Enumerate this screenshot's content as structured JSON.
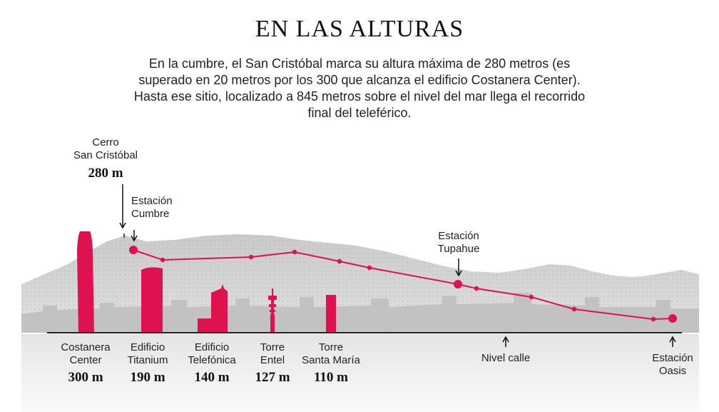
{
  "header": {
    "title": "EN LAS ALTURAS",
    "subtitle": "En la cumbre, el San Cristóbal marca su altura máxima de 280 metros (es superado en 20 metros por los 300 que alcanza el edificio Costanera Center). Hasta ese sitio, localizado a 845 metros sobre el nivel del mar llega el recorrido final del teleférico."
  },
  "colors": {
    "accent": "#e0114f",
    "ground": "#222222",
    "text": "#222222"
  },
  "hill": {
    "label_line1": "Cerro",
    "label_line2": "San Cristóbal",
    "height": "280 m"
  },
  "stations": {
    "cumbre": {
      "line1": "Estación",
      "line2": "Cumbre"
    },
    "tupahue": {
      "line1": "Estación",
      "line2": "Tupahue"
    },
    "oasis": {
      "line1": "Estación",
      "line2": "Oasis"
    }
  },
  "street_level": {
    "label": "Nivel calle"
  },
  "buildings": [
    {
      "line1": "Costanera",
      "line2": "Center",
      "height": "300 m",
      "height_value": 300
    },
    {
      "line1": "Edificio",
      "line2": "Titanium",
      "height": "190 m",
      "height_value": 190
    },
    {
      "line1": "Edificio",
      "line2": "Telefónica",
      "height": "140 m",
      "height_value": 140
    },
    {
      "line1": "Torre",
      "line2": "Entel",
      "height": "127 m",
      "height_value": 127
    },
    {
      "line1": "Torre",
      "line2": "Santa María",
      "height": "110 m",
      "height_value": 110
    }
  ]
}
